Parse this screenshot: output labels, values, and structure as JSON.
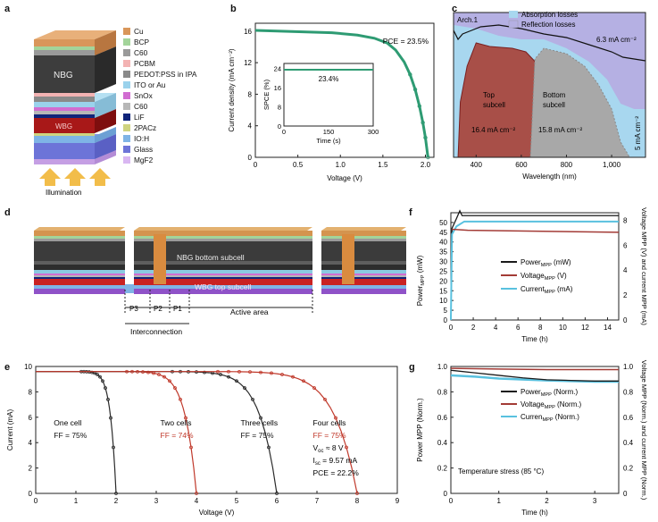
{
  "panel_labels": {
    "a": "a",
    "b": "b",
    "c": "c",
    "d": "d",
    "e": "e",
    "f": "f",
    "g": "g"
  },
  "panel_a": {
    "layers": [
      {
        "name": "Cu",
        "color": "#d9965a"
      },
      {
        "name": "BCP",
        "color": "#a3d49a"
      },
      {
        "name": "C60",
        "color": "#9a9a9a"
      },
      {
        "name": "PCBM",
        "color": "#f3b3b3"
      },
      {
        "name": "PEDOT:PSS in IPA",
        "color": "#8a8a8a"
      },
      {
        "name": "ITO or Au",
        "color": "#9ad2ec"
      },
      {
        "name": "SnOx",
        "color": "#d16dd1"
      },
      {
        "name": "C60",
        "color": "#b7b7b7"
      },
      {
        "name": "LiF",
        "color": "#10247a"
      },
      {
        "name": "2PACz",
        "color": "#cfd37f"
      },
      {
        "name": "IO:H",
        "color": "#7fb4e6"
      },
      {
        "name": "Glass",
        "color": "#6d74d8"
      },
      {
        "name": "MgF2",
        "color": "#d9b7f2"
      }
    ],
    "nbg_label": "NBG",
    "wbg_label": "WBG",
    "illumination_label": "Illumination"
  },
  "chart_data": [
    {
      "id": "b",
      "type": "line",
      "xlabel": "Voltage (V)",
      "ylabel": "Current density (mA cm⁻²)",
      "xlim": [
        0,
        2.1
      ],
      "ylim": [
        0,
        17
      ],
      "xticks": [
        0,
        0.5,
        1.0,
        1.5,
        2.0
      ],
      "yticks": [
        0,
        4,
        8,
        12,
        16
      ],
      "annotation": "PCE = 23.5%",
      "series": [
        {
          "color": "#2e9b73",
          "x": [
            0,
            0.3,
            0.6,
            0.9,
            1.2,
            1.4,
            1.55,
            1.65,
            1.75,
            1.82,
            1.88,
            1.93,
            1.97,
            2.0,
            2.03
          ],
          "y": [
            16.1,
            16.0,
            15.9,
            15.8,
            15.5,
            15.1,
            14.5,
            13.6,
            12.1,
            10.5,
            8.6,
            6.5,
            4.4,
            2.5,
            0
          ]
        }
      ],
      "inset": {
        "xlabel": "Time (s)",
        "ylabel": "SPCE (%)",
        "xlim": [
          0,
          300
        ],
        "ylim": [
          0,
          26
        ],
        "xticks": [
          0,
          150,
          300
        ],
        "yticks": [
          0,
          8,
          16,
          24
        ],
        "annotation": "23.4%",
        "value": 23.4
      }
    },
    {
      "id": "c",
      "type": "area",
      "xlabel": "Wavelength (nm)",
      "ylabel": "Absorptance and EQE",
      "xlim": [
        300,
        1150
      ],
      "xticks": [
        400,
        600,
        800,
        1000
      ],
      "tick_labels": [
        "400",
        "600",
        "800",
        "1,000"
      ],
      "legend": [
        "Absorption losses",
        "Reflection losses"
      ],
      "arch_label": "Arch.1",
      "top_subcell_label": "Top subcell",
      "top_value": "16.4 mA cm⁻²",
      "bottom_subcell_label": "Bottom subcell",
      "bottom_value": "15.8 mA cm⁻²",
      "reflection_value": "6.3 mA cm⁻²",
      "absorption_value": "5 mA cm⁻²",
      "colors": {
        "absorption": "#a8d7ef",
        "reflection": "#b5b0e3",
        "top": "#a84f48",
        "bottom": "#a8a8a8"
      }
    },
    {
      "id": "e",
      "type": "line",
      "xlabel": "Voltage (V)",
      "ylabel": "Current (mA)",
      "xlim": [
        0,
        9
      ],
      "ylim": [
        0,
        10
      ],
      "xticks": [
        0,
        1,
        2,
        3,
        4,
        5,
        6,
        7,
        8,
        9
      ],
      "yticks": [
        0,
        2,
        4,
        6,
        8,
        10
      ],
      "series": [
        {
          "name": "One cell",
          "ff": "FF = 75%",
          "voc": 2.0,
          "color": "#2a2a2a"
        },
        {
          "name": "Two cells",
          "ff": "FF = 74%",
          "voc": 4.0,
          "color": "#c0392b"
        },
        {
          "name": "Three cells",
          "ff": "FF = 75%",
          "voc": 6.0,
          "color": "#2a2a2a"
        },
        {
          "name": "Four cells",
          "ff": "FF = 75%",
          "voc": 8.0,
          "color": "#c0392b"
        }
      ],
      "four_cell_details": {
        "voc_label": "V",
        "voc_sub": "oc",
        "voc_value": " ≈ 8 V",
        "isc_label": "I",
        "isc_sub": "sc",
        "isc_value": " = 9.57 mA",
        "pce": "PCE = 22.2%"
      }
    },
    {
      "id": "f",
      "type": "line",
      "xlabel": "Time (h)",
      "ylabel_left": "Power",
      "ylabel_left_sub": "MPP",
      "ylabel_left_unit": " (mW)",
      "ylabel_right": "Voltage MPP (V) and current MPP (mA)",
      "xlim": [
        0,
        15
      ],
      "xticks": [
        0,
        2,
        4,
        6,
        8,
        10,
        12,
        14
      ],
      "yticks_left": [
        0,
        5,
        10,
        15,
        20,
        25,
        30,
        35,
        40,
        45,
        50
      ],
      "yticks_right": [
        0,
        2,
        4,
        6,
        8
      ],
      "legend": [
        {
          "label": "Power",
          "sub": "MPP",
          "unit": " (mW)",
          "color": "#1a1a1a"
        },
        {
          "label": "Voltage",
          "sub": "MPP",
          "unit": " (V)",
          "color": "#a33b36"
        },
        {
          "label": "Current",
          "sub": "MPP",
          "unit": " (mA)",
          "color": "#59c1df"
        }
      ],
      "power_level": 53.5,
      "voltage_level": 45,
      "current_level": 50.5
    },
    {
      "id": "g",
      "type": "line",
      "xlabel": "Time (h)",
      "ylabel_left": "Power MPP (Norm.)",
      "ylabel_right": "Voltage MPP (Norm.) and current MPP (Norm.)",
      "xlim": [
        0,
        3.5
      ],
      "xticks": [
        0,
        1,
        2,
        3
      ],
      "yticks": [
        "0",
        "0.2",
        "0.4",
        "0.6",
        "0.8",
        "1.0"
      ],
      "legend": [
        {
          "label": "Power",
          "sub": "MPP",
          "unit": " (Norm.)",
          "color": "#1a1a1a"
        },
        {
          "label": "Voltage",
          "sub": "MPP",
          "unit": " (Norm.)",
          "color": "#a33b36"
        },
        {
          "label": "Curren",
          "sub": "MPP",
          "unit": " (Norm.)",
          "color": "#59c1df"
        }
      ],
      "annotation": "Temperature stress (85 °C)",
      "power": [
        [
          0,
          0.97
        ],
        [
          0.5,
          0.95
        ],
        [
          1,
          0.93
        ],
        [
          1.5,
          0.91
        ],
        [
          2,
          0.895
        ],
        [
          2.5,
          0.89
        ],
        [
          3,
          0.885
        ],
        [
          3.5,
          0.885
        ]
      ],
      "voltage": [
        [
          0,
          0.985
        ],
        [
          1,
          0.98
        ],
        [
          2,
          0.975
        ],
        [
          3,
          0.975
        ],
        [
          3.5,
          0.975
        ]
      ],
      "current": [
        [
          0,
          0.93
        ],
        [
          0.5,
          0.92
        ],
        [
          1,
          0.905
        ],
        [
          2,
          0.89
        ],
        [
          3,
          0.88
        ],
        [
          3.5,
          0.88
        ]
      ]
    }
  ],
  "panel_d": {
    "nbg_label": "NBG bottom subcell",
    "wbg_label": "WBG top subcell",
    "p3": "P3",
    "p2": "P2",
    "p1": "P1",
    "active_area": "Active area",
    "interconnection": "Interconnection"
  }
}
